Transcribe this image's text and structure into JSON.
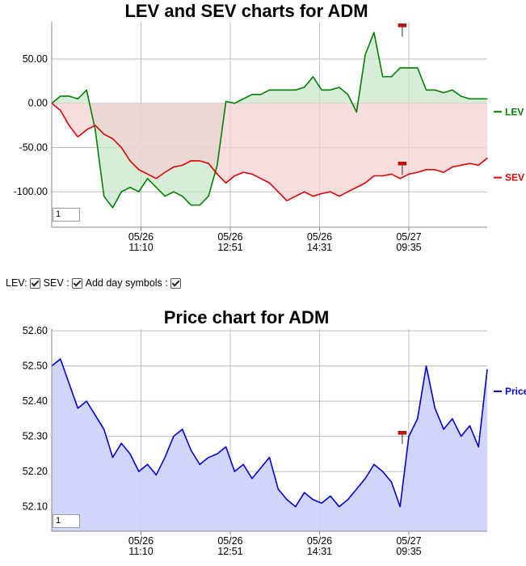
{
  "chart_data": [
    {
      "type": "line",
      "title": "LEV and SEV charts for ADM",
      "x_ticks": [
        {
          "date": "05/26",
          "time": "11:10"
        },
        {
          "date": "05/26",
          "time": "12:51"
        },
        {
          "date": "05/26",
          "time": "14:31"
        },
        {
          "date": "05/27",
          "time": "09:35"
        }
      ],
      "y_ticks": [
        "50.00",
        "0.00",
        "-50.00",
        "-100.00"
      ],
      "ylim": [
        -140,
        92
      ],
      "grid": true,
      "legend_position": "right",
      "zoom_value": "1",
      "series": [
        {
          "name": "LEV",
          "color": "#008000",
          "fill": "#c8e6c8",
          "x": [
            0,
            2,
            4,
            6,
            8,
            10,
            12,
            14,
            16,
            18,
            20,
            22,
            24,
            26,
            28,
            30,
            32,
            34,
            36,
            38,
            40,
            42,
            44,
            46,
            48,
            50,
            52,
            54,
            56,
            58,
            60,
            62,
            64,
            66,
            68,
            70,
            72,
            74,
            76,
            78,
            80,
            82,
            84,
            86,
            88,
            90,
            92,
            94,
            96,
            98,
            100
          ],
          "values": [
            0,
            8,
            8,
            5,
            15,
            -30,
            -105,
            -118,
            -100,
            -95,
            -100,
            -85,
            -95,
            -105,
            -100,
            -105,
            -115,
            -115,
            -105,
            -70,
            2,
            0,
            5,
            10,
            10,
            15,
            15,
            15,
            15,
            18,
            30,
            15,
            15,
            18,
            10,
            -10,
            55,
            80,
            30,
            30,
            40,
            40,
            40,
            15,
            15,
            12,
            15,
            8,
            5,
            5,
            5
          ]
        },
        {
          "name": "SEV",
          "color": "#e00000",
          "fill": "#f5cfd2",
          "x": [
            0,
            2,
            4,
            6,
            8,
            10,
            12,
            14,
            16,
            18,
            20,
            22,
            24,
            26,
            28,
            30,
            32,
            34,
            36,
            38,
            40,
            42,
            44,
            46,
            48,
            50,
            52,
            54,
            56,
            58,
            60,
            62,
            64,
            66,
            68,
            70,
            72,
            74,
            76,
            78,
            80,
            82,
            84,
            86,
            88,
            90,
            92,
            94,
            96,
            98,
            100
          ],
          "values": [
            0,
            -8,
            -25,
            -38,
            -30,
            -25,
            -35,
            -40,
            -50,
            -65,
            -75,
            -80,
            -85,
            -78,
            -72,
            -70,
            -65,
            -65,
            -68,
            -80,
            -90,
            -82,
            -78,
            -80,
            -85,
            -90,
            -100,
            -110,
            -105,
            -100,
            -105,
            -102,
            -100,
            -105,
            -100,
            -95,
            -90,
            -82,
            -82,
            -80,
            -85,
            -80,
            -78,
            -75,
            -75,
            -78,
            -72,
            -70,
            -68,
            -70,
            -62
          ]
        }
      ],
      "markers": [
        {
          "series": "LEV",
          "x": 80.5,
          "y": 88
        },
        {
          "series": "SEV",
          "x": 80.5,
          "y": -68
        }
      ]
    },
    {
      "type": "area",
      "title": "Price chart for ADM",
      "x_ticks": [
        {
          "date": "05/26",
          "time": "11:10"
        },
        {
          "date": "05/26",
          "time": "12:51"
        },
        {
          "date": "05/26",
          "time": "14:31"
        },
        {
          "date": "05/27",
          "time": "09:35"
        }
      ],
      "y_ticks": [
        "52.60",
        "52.50",
        "52.40",
        "52.30",
        "52.20",
        "52.10"
      ],
      "ylim": [
        52.03,
        52.605
      ],
      "grid": true,
      "legend_position": "right",
      "zoom_value": "1",
      "series": [
        {
          "name": "Price",
          "color": "#0000dd",
          "fill": "#cdd0fa",
          "x": [
            0,
            2,
            4,
            6,
            8,
            10,
            12,
            14,
            16,
            18,
            20,
            22,
            24,
            26,
            28,
            30,
            32,
            34,
            36,
            38,
            40,
            42,
            44,
            46,
            48,
            50,
            52,
            54,
            56,
            58,
            60,
            62,
            64,
            66,
            68,
            70,
            72,
            74,
            76,
            78,
            80,
            82,
            84,
            86,
            88,
            90,
            92,
            94,
            96,
            98,
            100
          ],
          "values": [
            52.5,
            52.52,
            52.45,
            52.38,
            52.4,
            52.36,
            52.32,
            52.24,
            52.28,
            52.25,
            52.2,
            52.22,
            52.19,
            52.24,
            52.3,
            52.32,
            52.26,
            52.22,
            52.24,
            52.25,
            52.27,
            52.2,
            52.22,
            52.18,
            52.21,
            52.24,
            52.15,
            52.12,
            52.1,
            52.14,
            52.12,
            52.11,
            52.13,
            52.1,
            52.12,
            52.15,
            52.18,
            52.22,
            52.2,
            52.17,
            52.1,
            52.3,
            52.35,
            52.5,
            52.38,
            52.32,
            52.35,
            52.3,
            52.33,
            52.27,
            52.49
          ]
        }
      ],
      "markers": [
        {
          "series": "Price",
          "x": 80.5,
          "y": 52.31
        }
      ]
    }
  ],
  "controls": {
    "lev_label": "LEV:",
    "sev_label": "SEV :",
    "day_symbols_label": "Add day symbols :"
  }
}
